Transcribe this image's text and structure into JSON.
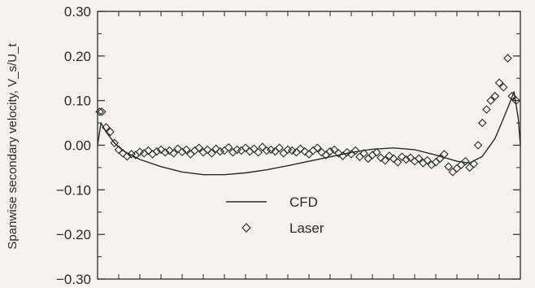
{
  "chart_data": {
    "type": "line",
    "title": "",
    "xlabel": "",
    "ylabel": "Spanwise secondary velocity, V_s/U_t",
    "ylim": [
      -0.3,
      0.3
    ],
    "xlim": [
      0,
      1
    ],
    "yticks": [
      "0.30",
      "0.20",
      "0.10",
      "0.00",
      "−0.10",
      "−0.20",
      "−0.30"
    ],
    "ytick_values": [
      0.3,
      0.2,
      0.1,
      0.0,
      -0.1,
      -0.2,
      -0.3
    ],
    "grid": false,
    "legend_placement": "lower-left",
    "series": [
      {
        "name": "CFD",
        "style": "line",
        "x": [
          0.0,
          0.008,
          0.02,
          0.04,
          0.06,
          0.08,
          0.1,
          0.15,
          0.2,
          0.25,
          0.3,
          0.35,
          0.4,
          0.45,
          0.5,
          0.55,
          0.6,
          0.65,
          0.7,
          0.75,
          0.8,
          0.85,
          0.88,
          0.91,
          0.94,
          0.96,
          0.975,
          0.985,
          0.995,
          1.0
        ],
        "values": [
          0.0,
          0.05,
          0.03,
          0.005,
          -0.012,
          -0.022,
          -0.032,
          -0.048,
          -0.06,
          -0.066,
          -0.066,
          -0.062,
          -0.055,
          -0.046,
          -0.036,
          -0.026,
          -0.016,
          -0.009,
          -0.006,
          -0.01,
          -0.022,
          -0.036,
          -0.04,
          -0.025,
          0.015,
          0.06,
          0.095,
          0.12,
          0.06,
          0.0
        ]
      },
      {
        "name": "Laser",
        "style": "diamond-markers",
        "x": [
          0.005,
          0.01,
          0.02,
          0.03,
          0.04,
          0.05,
          0.06,
          0.07,
          0.08,
          0.09,
          0.1,
          0.11,
          0.12,
          0.13,
          0.14,
          0.15,
          0.16,
          0.17,
          0.18,
          0.19,
          0.2,
          0.21,
          0.22,
          0.23,
          0.24,
          0.25,
          0.26,
          0.27,
          0.28,
          0.29,
          0.3,
          0.31,
          0.32,
          0.33,
          0.34,
          0.35,
          0.36,
          0.37,
          0.38,
          0.39,
          0.4,
          0.41,
          0.42,
          0.43,
          0.44,
          0.45,
          0.46,
          0.47,
          0.48,
          0.49,
          0.5,
          0.51,
          0.52,
          0.53,
          0.54,
          0.55,
          0.56,
          0.57,
          0.58,
          0.59,
          0.6,
          0.61,
          0.62,
          0.63,
          0.64,
          0.65,
          0.66,
          0.67,
          0.68,
          0.69,
          0.7,
          0.71,
          0.72,
          0.73,
          0.74,
          0.75,
          0.76,
          0.77,
          0.78,
          0.79,
          0.8,
          0.81,
          0.82,
          0.83,
          0.84,
          0.85,
          0.86,
          0.87,
          0.88,
          0.89,
          0.9,
          0.91,
          0.92,
          0.93,
          0.94,
          0.95,
          0.96,
          0.97,
          0.98,
          0.99
        ],
        "values": [
          0.075,
          0.075,
          0.04,
          0.03,
          0.005,
          -0.01,
          -0.018,
          -0.025,
          -0.02,
          -0.022,
          -0.015,
          -0.018,
          -0.012,
          -0.02,
          -0.014,
          -0.01,
          -0.016,
          -0.012,
          -0.018,
          -0.008,
          -0.015,
          -0.01,
          -0.02,
          -0.012,
          -0.006,
          -0.016,
          -0.01,
          -0.018,
          -0.008,
          -0.014,
          -0.012,
          -0.005,
          -0.016,
          -0.01,
          -0.012,
          -0.006,
          -0.014,
          -0.008,
          -0.016,
          -0.004,
          -0.012,
          -0.01,
          -0.014,
          -0.006,
          -0.018,
          -0.01,
          -0.012,
          -0.016,
          -0.008,
          -0.014,
          -0.02,
          -0.012,
          -0.006,
          -0.016,
          -0.022,
          -0.014,
          -0.01,
          -0.018,
          -0.024,
          -0.016,
          -0.02,
          -0.012,
          -0.026,
          -0.018,
          -0.03,
          -0.022,
          -0.016,
          -0.028,
          -0.034,
          -0.024,
          -0.03,
          -0.038,
          -0.026,
          -0.032,
          -0.028,
          -0.036,
          -0.03,
          -0.04,
          -0.034,
          -0.044,
          -0.038,
          -0.03,
          -0.02,
          -0.048,
          -0.06,
          -0.052,
          -0.044,
          -0.036,
          -0.05,
          -0.042,
          0.0,
          0.05,
          0.08,
          0.1,
          0.11,
          0.14,
          0.13,
          0.195,
          0.11,
          0.1
        ]
      }
    ]
  }
}
